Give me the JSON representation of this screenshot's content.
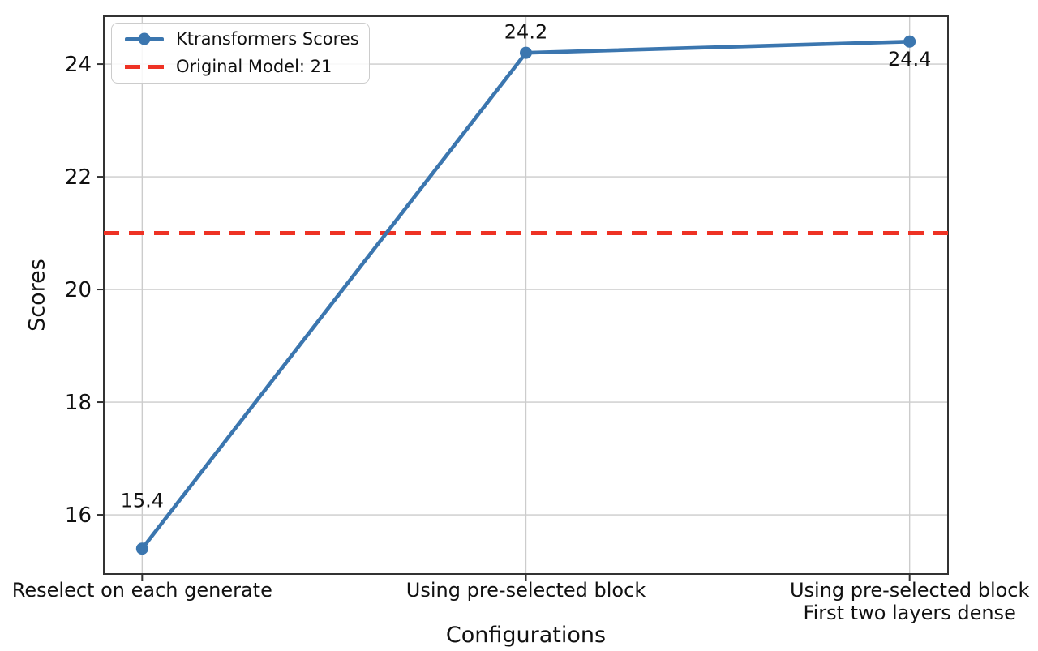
{
  "chart_data": {
    "type": "line",
    "title": "",
    "xlabel": "Configurations",
    "ylabel": "Scores",
    "categories": [
      "Reselect on each generate",
      "Using pre-selected block",
      "Using pre-selected block\nFirst two layers dense"
    ],
    "series": [
      {
        "name": "Ktransformers Scores",
        "values": [
          15.4,
          24.2,
          24.4
        ],
        "point_labels": [
          "15.4",
          "24.2",
          "24.4"
        ],
        "color": "#3b76af",
        "marker": "circle",
        "line_style": "solid"
      }
    ],
    "reference_line": {
      "label": "Original Model: 21",
      "value": 21,
      "color": "#ee3224",
      "line_style": "dashed"
    },
    "yticks": [
      "16",
      "18",
      "20",
      "22",
      "24"
    ],
    "ytick_values": [
      16,
      18,
      20,
      22,
      24
    ],
    "ylim": [
      14.95,
      24.85
    ],
    "xlim": [
      -0.1,
      2.1
    ],
    "grid": true,
    "legend_position": "upper-left",
    "colors": {
      "grid": "#cccccc",
      "spine": "#333333",
      "text": "#111111",
      "background": "#ffffff"
    }
  }
}
